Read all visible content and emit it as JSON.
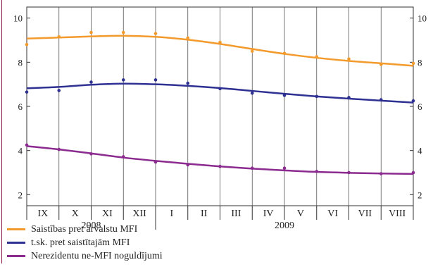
{
  "chart_data": {
    "type": "line",
    "title": "",
    "xlabel": "",
    "ylabel": "",
    "ylim": [
      1.5,
      10.5
    ],
    "yticks": [
      2,
      4,
      6,
      8,
      10
    ],
    "grid": "vertical",
    "legend_position": "bottom-left",
    "categories": [
      "IX",
      "X",
      "XI",
      "XII",
      "I",
      "II",
      "III",
      "IV",
      "V",
      "VI",
      "VII",
      "VIII"
    ],
    "year_labels": [
      {
        "label": "2008",
        "from": 0,
        "to": 3
      },
      {
        "label": "2009",
        "from": 4,
        "to": 11
      }
    ],
    "series": [
      {
        "name": "Saistības pret ārvalstu MFI",
        "color": "#f39a2c",
        "points": [
          8.8,
          9.15,
          9.35,
          9.35,
          9.3,
          9.1,
          8.9,
          8.5,
          8.4,
          8.25,
          8.15,
          7.9,
          7.95
        ],
        "trend": [
          9.07,
          9.12,
          9.17,
          9.2,
          9.15,
          9.02,
          8.83,
          8.6,
          8.38,
          8.2,
          8.06,
          7.95,
          7.84
        ]
      },
      {
        "name": "t.sk. pret saistītajām MFI",
        "color": "#2e3192",
        "points": [
          6.65,
          6.72,
          7.1,
          7.2,
          7.2,
          7.05,
          6.8,
          6.6,
          6.5,
          6.45,
          6.4,
          6.3,
          6.25
        ],
        "trend": [
          6.82,
          6.88,
          6.98,
          7.03,
          7.0,
          6.93,
          6.83,
          6.7,
          6.57,
          6.45,
          6.35,
          6.26,
          6.17
        ]
      },
      {
        "name": "Nerezidentu ne-MFI noguldījumi",
        "color": "#8b2a8f",
        "points": [
          4.25,
          4.05,
          3.85,
          3.72,
          3.48,
          3.35,
          3.28,
          3.2,
          3.2,
          3.05,
          3.0,
          2.95,
          3.0
        ],
        "trend": [
          4.2,
          4.05,
          3.87,
          3.68,
          3.53,
          3.4,
          3.28,
          3.18,
          3.1,
          3.03,
          2.99,
          2.96,
          2.94
        ]
      }
    ]
  }
}
